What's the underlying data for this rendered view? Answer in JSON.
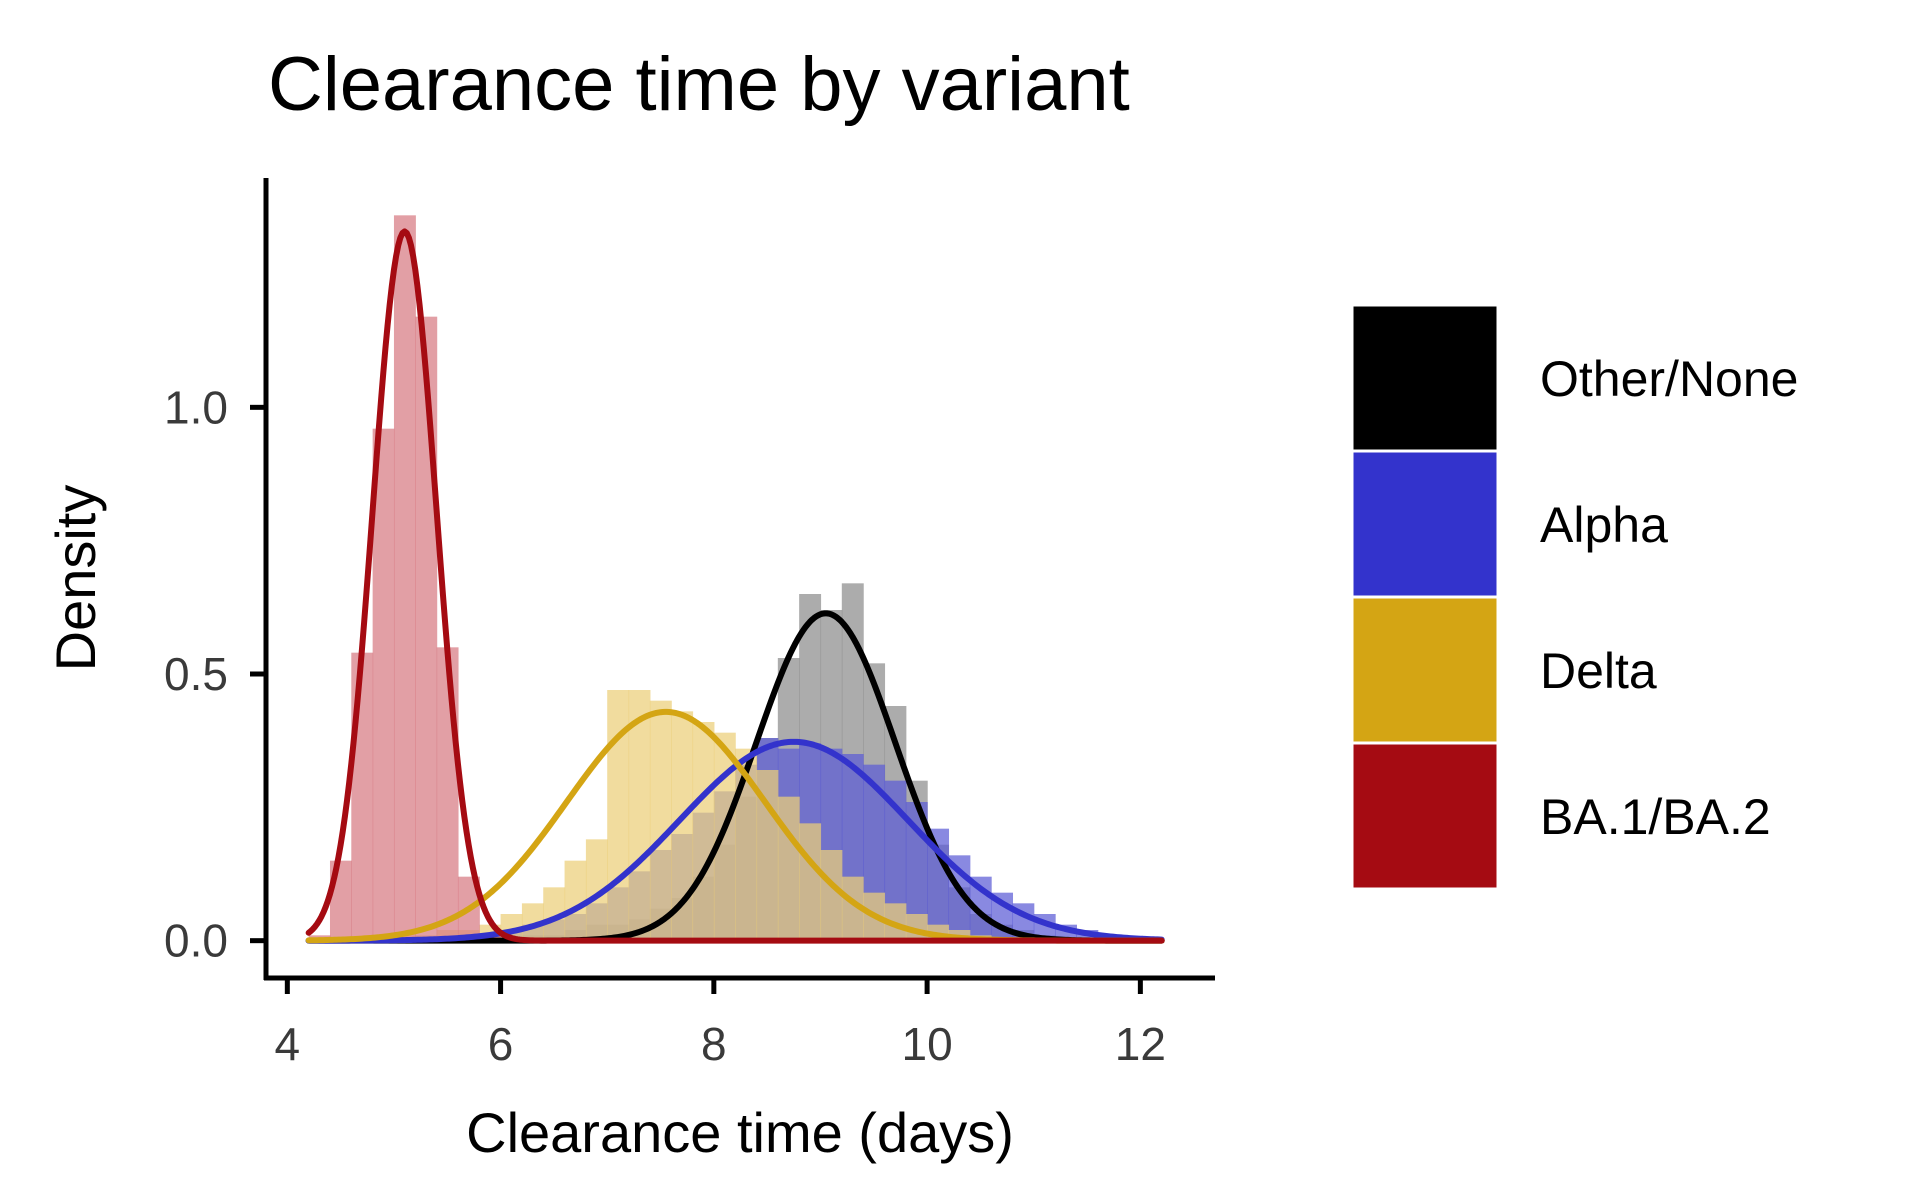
{
  "chart_data": {
    "type": "area",
    "title": "Clearance time by variant",
    "xlabel": "Clearance time (days)",
    "ylabel": "Density",
    "xlim": [
      3.8,
      12.7
    ],
    "ylim": [
      -0.07,
      1.43
    ],
    "x_ticks": [
      4,
      6,
      8,
      10,
      12
    ],
    "x_tick_labels": [
      "4",
      "6",
      "8",
      "10",
      "12"
    ],
    "y_ticks": [
      0.0,
      0.5,
      1.0
    ],
    "y_tick_labels": [
      "0.0",
      "0.5",
      "1.0"
    ],
    "grid": false,
    "legend_position": "right",
    "x_range_drawn": [
      4.2,
      12.2
    ],
    "histogram_bin_width": 0.2,
    "series": [
      {
        "name": "Other/None",
        "color": "#000000",
        "fill": "#8c8c8c",
        "density_mean": 9.05,
        "density_sd": 0.65,
        "histogram": [
          {
            "x0": 6.2,
            "density": 0.01
          },
          {
            "x0": 6.4,
            "density": 0.01
          },
          {
            "x0": 6.6,
            "density": 0.02
          },
          {
            "x0": 6.8,
            "density": 0.03
          },
          {
            "x0": 7.0,
            "density": 0.03
          },
          {
            "x0": 7.2,
            "density": 0.04
          },
          {
            "x0": 7.4,
            "density": 0.06
          },
          {
            "x0": 7.6,
            "density": 0.08
          },
          {
            "x0": 7.8,
            "density": 0.12
          },
          {
            "x0": 8.0,
            "density": 0.18
          },
          {
            "x0": 8.2,
            "density": 0.27
          },
          {
            "x0": 8.4,
            "density": 0.38
          },
          {
            "x0": 8.6,
            "density": 0.53
          },
          {
            "x0": 8.8,
            "density": 0.65
          },
          {
            "x0": 9.0,
            "density": 0.62
          },
          {
            "x0": 9.2,
            "density": 0.67
          },
          {
            "x0": 9.4,
            "density": 0.52
          },
          {
            "x0": 9.6,
            "density": 0.44
          },
          {
            "x0": 9.8,
            "density": 0.3
          },
          {
            "x0": 10.0,
            "density": 0.18
          },
          {
            "x0": 10.2,
            "density": 0.1
          },
          {
            "x0": 10.4,
            "density": 0.05
          },
          {
            "x0": 10.6,
            "density": 0.03
          },
          {
            "x0": 10.8,
            "density": 0.02
          },
          {
            "x0": 11.0,
            "density": 0.01
          }
        ]
      },
      {
        "name": "Alpha",
        "color": "#3333cc",
        "fill": "#5c5cd6",
        "density_mean": 8.75,
        "density_sd": 1.07,
        "histogram": [
          {
            "x0": 5.8,
            "density": 0.01
          },
          {
            "x0": 6.0,
            "density": 0.02
          },
          {
            "x0": 6.2,
            "density": 0.03
          },
          {
            "x0": 6.4,
            "density": 0.04
          },
          {
            "x0": 6.6,
            "density": 0.05
          },
          {
            "x0": 6.8,
            "density": 0.07
          },
          {
            "x0": 7.0,
            "density": 0.1
          },
          {
            "x0": 7.2,
            "density": 0.13
          },
          {
            "x0": 7.4,
            "density": 0.17
          },
          {
            "x0": 7.6,
            "density": 0.2
          },
          {
            "x0": 7.8,
            "density": 0.24
          },
          {
            "x0": 8.0,
            "density": 0.28
          },
          {
            "x0": 8.2,
            "density": 0.33
          },
          {
            "x0": 8.4,
            "density": 0.38
          },
          {
            "x0": 8.6,
            "density": 0.36
          },
          {
            "x0": 8.8,
            "density": 0.37
          },
          {
            "x0": 9.0,
            "density": 0.36
          },
          {
            "x0": 9.2,
            "density": 0.35
          },
          {
            "x0": 9.4,
            "density": 0.33
          },
          {
            "x0": 9.6,
            "density": 0.3
          },
          {
            "x0": 9.8,
            "density": 0.26
          },
          {
            "x0": 10.0,
            "density": 0.21
          },
          {
            "x0": 10.2,
            "density": 0.16
          },
          {
            "x0": 10.4,
            "density": 0.12
          },
          {
            "x0": 10.6,
            "density": 0.09
          },
          {
            "x0": 10.8,
            "density": 0.07
          },
          {
            "x0": 11.0,
            "density": 0.05
          },
          {
            "x0": 11.2,
            "density": 0.03
          },
          {
            "x0": 11.4,
            "density": 0.02
          },
          {
            "x0": 11.6,
            "density": 0.01
          }
        ]
      },
      {
        "name": "Delta",
        "color": "#d4a514",
        "fill": "#eccf78",
        "density_mean": 7.55,
        "density_sd": 0.93,
        "histogram": [
          {
            "x0": 4.8,
            "density": 0.01
          },
          {
            "x0": 5.0,
            "density": 0.01
          },
          {
            "x0": 5.2,
            "density": 0.01
          },
          {
            "x0": 5.4,
            "density": 0.02
          },
          {
            "x0": 5.6,
            "density": 0.02
          },
          {
            "x0": 5.8,
            "density": 0.03
          },
          {
            "x0": 6.0,
            "density": 0.05
          },
          {
            "x0": 6.2,
            "density": 0.07
          },
          {
            "x0": 6.4,
            "density": 0.1
          },
          {
            "x0": 6.6,
            "density": 0.15
          },
          {
            "x0": 6.8,
            "density": 0.19
          },
          {
            "x0": 7.0,
            "density": 0.47
          },
          {
            "x0": 7.2,
            "density": 0.47
          },
          {
            "x0": 7.4,
            "density": 0.45
          },
          {
            "x0": 7.6,
            "density": 0.43
          },
          {
            "x0": 7.8,
            "density": 0.41
          },
          {
            "x0": 8.0,
            "density": 0.39
          },
          {
            "x0": 8.2,
            "density": 0.36
          },
          {
            "x0": 8.4,
            "density": 0.32
          },
          {
            "x0": 8.6,
            "density": 0.27
          },
          {
            "x0": 8.8,
            "density": 0.22
          },
          {
            "x0": 9.0,
            "density": 0.17
          },
          {
            "x0": 9.2,
            "density": 0.12
          },
          {
            "x0": 9.4,
            "density": 0.09
          },
          {
            "x0": 9.6,
            "density": 0.07
          },
          {
            "x0": 9.8,
            "density": 0.05
          },
          {
            "x0": 10.0,
            "density": 0.03
          },
          {
            "x0": 10.2,
            "density": 0.02
          },
          {
            "x0": 10.4,
            "density": 0.01
          }
        ]
      },
      {
        "name": "BA.1/BA.2",
        "color": "#a50b12",
        "fill": "#d77a82",
        "density_mean": 5.1,
        "density_sd": 0.3,
        "histogram": [
          {
            "x0": 4.2,
            "density": 0.01
          },
          {
            "x0": 4.4,
            "density": 0.15
          },
          {
            "x0": 4.6,
            "density": 0.54
          },
          {
            "x0": 4.8,
            "density": 0.96
          },
          {
            "x0": 5.0,
            "density": 1.36
          },
          {
            "x0": 5.2,
            "density": 1.17
          },
          {
            "x0": 5.4,
            "density": 0.55
          },
          {
            "x0": 5.6,
            "density": 0.12
          },
          {
            "x0": 5.8,
            "density": 0.01
          }
        ]
      }
    ]
  }
}
